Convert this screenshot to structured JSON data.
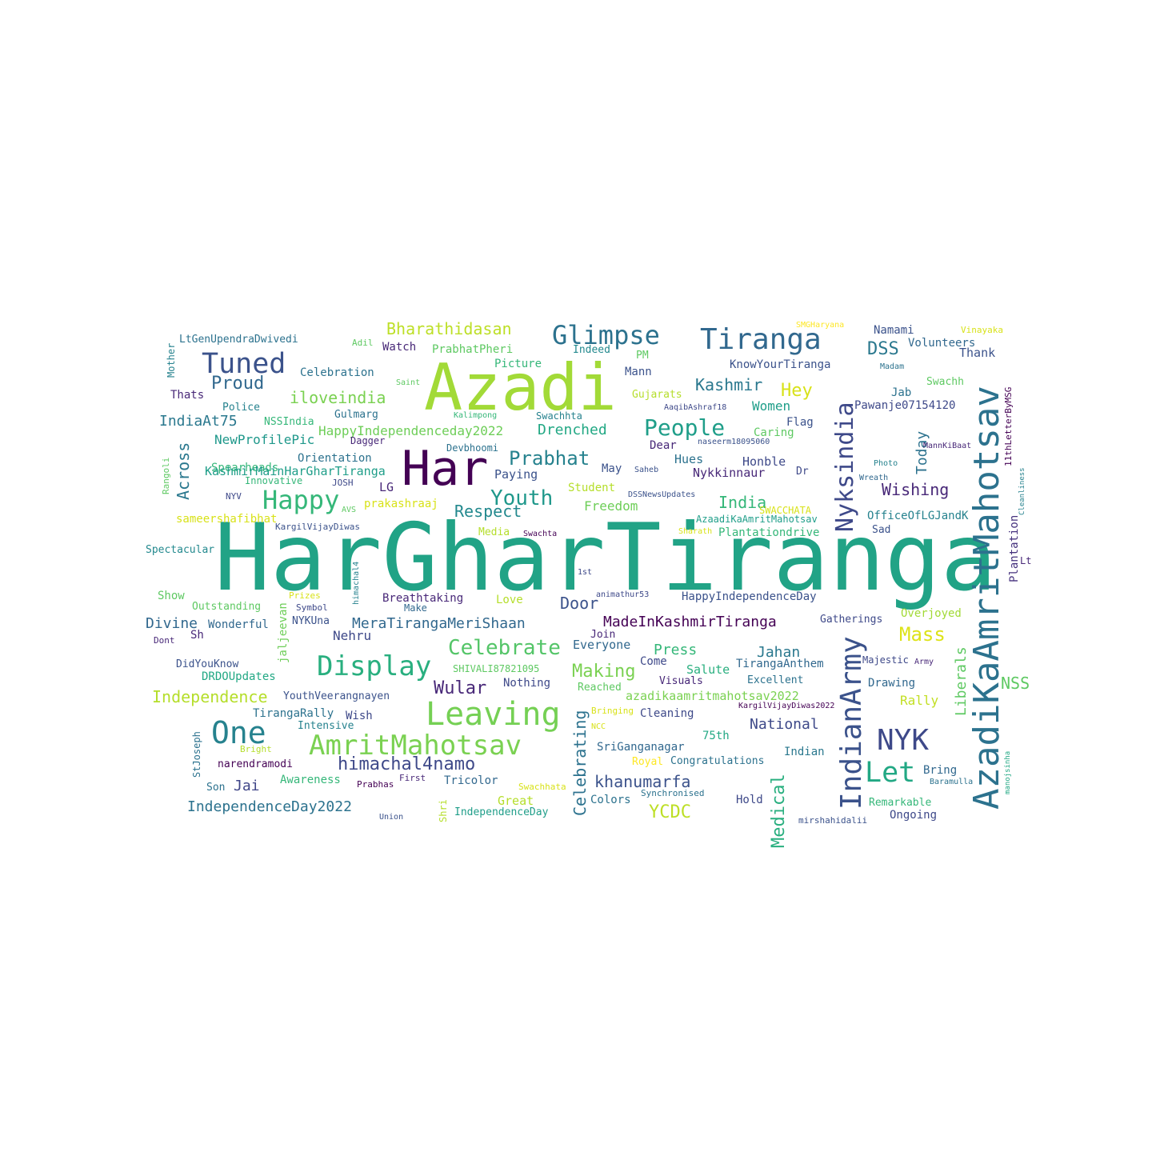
{
  "words": [
    {
      "text": "HarGharTiranga",
      "color": "#21a386"
    },
    {
      "text": "Azadi",
      "color": "#a2da37"
    },
    {
      "text": "Har",
      "color": "#440154"
    },
    {
      "text": "AzadiKaAmritMahotsav",
      "color": "#2c728e"
    },
    {
      "text": "IndianArmy",
      "color": "#3b528b"
    },
    {
      "text": "Leaving",
      "color": "#75d054"
    },
    {
      "text": "Tiranga",
      "color": "#31688e"
    },
    {
      "text": "Display",
      "color": "#29af7f"
    },
    {
      "text": "AmritMahotsav",
      "color": "#7ad151"
    },
    {
      "text": "Glimpse",
      "color": "#2c728e"
    },
    {
      "text": "Tuned",
      "color": "#3b528b"
    },
    {
      "text": "One",
      "color": "#26828e"
    },
    {
      "text": "NYK",
      "color": "#3e4989"
    },
    {
      "text": "Nyksindia",
      "color": "#3e4989"
    },
    {
      "text": "Happy",
      "color": "#35b779"
    },
    {
      "text": "Let",
      "color": "#22a884"
    },
    {
      "text": "Youth",
      "color": "#1f988b"
    },
    {
      "text": "People",
      "color": "#1f9e89"
    },
    {
      "text": "Celebrate",
      "color": "#54c568"
    },
    {
      "text": "himachal4namo",
      "color": "#3e4989"
    },
    {
      "text": "Wular",
      "color": "#482878"
    },
    {
      "text": "Prabhat",
      "color": "#26828e"
    },
    {
      "text": "Mass",
      "color": "#dde318"
    },
    {
      "text": "Proud",
      "color": "#31688e"
    },
    {
      "text": "Bharathidasan",
      "color": "#bddf26"
    },
    {
      "text": "Kashmir",
      "color": "#2a788e"
    },
    {
      "text": "iloveindia",
      "color": "#7ad151"
    },
    {
      "text": "Respect",
      "color": "#23898e"
    },
    {
      "text": "Making",
      "color": "#7ad151"
    },
    {
      "text": "Independence",
      "color": "#b5de2b"
    },
    {
      "text": "IndependenceDay2022",
      "color": "#2c728e"
    },
    {
      "text": "MeraTirangaMeriShaan",
      "color": "#31688e"
    },
    {
      "text": "MadeInKashmirTiranga",
      "color": "#440154"
    },
    {
      "text": "Drenched",
      "color": "#22a884"
    },
    {
      "text": "YCDC",
      "color": "#bddf26"
    },
    {
      "text": "khanumarfa",
      "color": "#3b528b"
    },
    {
      "text": "HappyIndependenceday2022",
      "color": "#6ece58"
    },
    {
      "text": "Celebrating",
      "color": "#2c728e"
    },
    {
      "text": "Medical",
      "color": "#29af7f"
    },
    {
      "text": "Liberals",
      "color": "#5ec962"
    },
    {
      "text": "NSS",
      "color": "#5ec962"
    },
    {
      "text": "Hey",
      "color": "#d8e219"
    },
    {
      "text": "DSS",
      "color": "#2a788e"
    },
    {
      "text": "Across",
      "color": "#2a788e"
    },
    {
      "text": "Today",
      "color": "#2c728e"
    },
    {
      "text": "Wishing",
      "color": "#482878"
    },
    {
      "text": "Divine",
      "color": "#31688e"
    },
    {
      "text": "India",
      "color": "#35b779"
    },
    {
      "text": "Jai",
      "color": "#404688"
    },
    {
      "text": "Door",
      "color": "#3b528b"
    },
    {
      "text": "Press",
      "color": "#35b779"
    },
    {
      "text": "Jahan",
      "color": "#2a788e"
    },
    {
      "text": "National",
      "color": "#3e4989"
    },
    {
      "text": "IndiaAt75",
      "color": "#2a788e"
    },
    {
      "text": "Nehru",
      "color": "#3e4989"
    },
    {
      "text": "Freedom",
      "color": "#6ece58"
    },
    {
      "text": "Student",
      "color": "#b5de2b"
    },
    {
      "text": "May",
      "color": "#3b528b"
    },
    {
      "text": "Hues",
      "color": "#2c728e"
    },
    {
      "text": "Honble",
      "color": "#3e4989"
    },
    {
      "text": "Nykkinnaur",
      "color": "#482878"
    },
    {
      "text": "Plantation",
      "color": "#46327e"
    },
    {
      "text": "Women",
      "color": "#1f9e89"
    },
    {
      "text": "Jab",
      "color": "#2c728e"
    },
    {
      "text": "Namami",
      "color": "#3b528b"
    },
    {
      "text": "Thank",
      "color": "#3b528b"
    },
    {
      "text": "Watch",
      "color": "#482878"
    },
    {
      "text": "Celebration",
      "color": "#2c728e"
    },
    {
      "text": "Volunteers",
      "color": "#31688e"
    },
    {
      "text": "KnowYourTiranga",
      "color": "#3b528b"
    },
    {
      "text": "Swachh",
      "color": "#5ec962"
    },
    {
      "text": "Pawanje07154120",
      "color": "#3e4989"
    },
    {
      "text": "Flag",
      "color": "#3b528b"
    },
    {
      "text": "Caring",
      "color": "#5ec962"
    },
    {
      "text": "Dear",
      "color": "#482878"
    },
    {
      "text": "Rally",
      "color": "#c2df23"
    },
    {
      "text": "Overjoyed",
      "color": "#a2da37"
    },
    {
      "text": "Spearheads",
      "color": "#35b779"
    },
    {
      "text": "NewProfilePic",
      "color": "#1f988b"
    },
    {
      "text": "Orientation",
      "color": "#2c728e"
    },
    {
      "text": "KashmirMainHarGharTiranga",
      "color": "#1f9e89"
    },
    {
      "text": "LG",
      "color": "#482878"
    },
    {
      "text": "Paying",
      "color": "#3b528b"
    },
    {
      "text": "prakashraaj",
      "color": "#d8e219"
    },
    {
      "text": "sameershafibhat",
      "color": "#d8e219"
    },
    {
      "text": "OfficeOfLGJandK",
      "color": "#26828e"
    },
    {
      "text": "Plantationdrive",
      "color": "#35b779"
    },
    {
      "text": "AzaadiKaAmritMahotsav",
      "color": "#1f9e89"
    },
    {
      "text": "HappyIndependenceDay",
      "color": "#3b528b"
    },
    {
      "text": "Breathtaking",
      "color": "#482878"
    },
    {
      "text": "Love",
      "color": "#b5de2b"
    },
    {
      "text": "Everyone",
      "color": "#31688e"
    },
    {
      "text": "Salute",
      "color": "#29af7f"
    },
    {
      "text": "TirangaAnthem",
      "color": "#31688e"
    },
    {
      "text": "Majestic",
      "color": "#3e4989"
    },
    {
      "text": "Drawing",
      "color": "#31688e"
    },
    {
      "text": "Excellent",
      "color": "#2c728e"
    },
    {
      "text": "azadikaamritmahotsav2022",
      "color": "#7ad151"
    },
    {
      "text": "Cleaning",
      "color": "#3e4989"
    },
    {
      "text": "Visuals",
      "color": "#482878"
    },
    {
      "text": "Come",
      "color": "#3e4989"
    },
    {
      "text": "Nothing",
      "color": "#3e4989"
    },
    {
      "text": "Reached",
      "color": "#5ec962"
    },
    {
      "text": "YouthVeerangnayen",
      "color": "#3b528b"
    },
    {
      "text": "TirangaRally",
      "color": "#2c728e"
    },
    {
      "text": "Wish",
      "color": "#3e4989"
    },
    {
      "text": "Intensive",
      "color": "#26828e"
    },
    {
      "text": "75th",
      "color": "#22a884"
    },
    {
      "text": "SriGanganagar",
      "color": "#31688e"
    },
    {
      "text": "Indian",
      "color": "#2a788e"
    },
    {
      "text": "Congratulations",
      "color": "#2c728e"
    },
    {
      "text": "Royal",
      "color": "#fde725"
    },
    {
      "text": "Bring",
      "color": "#31688e"
    },
    {
      "text": "Remarkable",
      "color": "#35b779"
    },
    {
      "text": "Ongoing",
      "color": "#3e4989"
    },
    {
      "text": "Hold",
      "color": "#3e4989"
    },
    {
      "text": "Colors",
      "color": "#2c728e"
    },
    {
      "text": "IndependenceDay",
      "color": "#1f9e89"
    },
    {
      "text": "Great",
      "color": "#b5de2b"
    },
    {
      "text": "Tricolor",
      "color": "#31688e"
    },
    {
      "text": "Awareness",
      "color": "#35b779"
    },
    {
      "text": "narendramodi",
      "color": "#440154"
    },
    {
      "text": "Son",
      "color": "#2c728e"
    },
    {
      "text": "StJoseph",
      "color": "#2c728e"
    },
    {
      "text": "DidYouKnow",
      "color": "#3b528b"
    },
    {
      "text": "DRDOUpdates",
      "color": "#22a884"
    },
    {
      "text": "Dont",
      "color": "#482878"
    },
    {
      "text": "Sh",
      "color": "#482878"
    },
    {
      "text": "Wonderful",
      "color": "#31688e"
    },
    {
      "text": "jaljeevan",
      "color": "#6ece58"
    },
    {
      "text": "NYKUna",
      "color": "#3b528b"
    },
    {
      "text": "Outstanding",
      "color": "#5ec962"
    },
    {
      "text": "Show",
      "color": "#5ec962"
    },
    {
      "text": "Spectacular",
      "color": "#23898e"
    },
    {
      "text": "Prizes",
      "color": "#d8e219"
    },
    {
      "text": "Symbol",
      "color": "#3e4989"
    },
    {
      "text": "Make",
      "color": "#31688e"
    },
    {
      "text": "himachal4",
      "color": "#26828e"
    },
    {
      "text": "Mother",
      "color": "#26828e"
    },
    {
      "text": "LtGenUpendraDwivedi",
      "color": "#2c728e"
    },
    {
      "text": "Adil",
      "color": "#5ec962"
    },
    {
      "text": "PrabhatPheri",
      "color": "#5ec962"
    },
    {
      "text": "Indeed",
      "color": "#23898e"
    },
    {
      "text": "PM",
      "color": "#5ec962"
    },
    {
      "text": "Mann",
      "color": "#3b528b"
    },
    {
      "text": "Picture",
      "color": "#35b779"
    },
    {
      "text": "Thats",
      "color": "#482878"
    },
    {
      "text": "Police",
      "color": "#26828e"
    },
    {
      "text": "NSSIndia",
      "color": "#35b779"
    },
    {
      "text": "Gulmarg",
      "color": "#2c728e"
    },
    {
      "text": "Dagger",
      "color": "#482878"
    },
    {
      "text": "Rangoli",
      "color": "#5ec962"
    },
    {
      "text": "NYV",
      "color": "#3e4989"
    },
    {
      "text": "Innovative",
      "color": "#35b779"
    },
    {
      "text": "JOSH",
      "color": "#3e4989"
    },
    {
      "text": "AVS",
      "color": "#5ec962"
    },
    {
      "text": "KargilVijayDiwas",
      "color": "#3b528b"
    },
    {
      "text": "Media",
      "color": "#b5de2b"
    },
    {
      "text": "Swachta",
      "color": "#440154"
    },
    {
      "text": "1st",
      "color": "#3e4989"
    },
    {
      "text": "animathur53",
      "color": "#3e4989"
    },
    {
      "text": "Saint",
      "color": "#5ec962"
    },
    {
      "text": "Kalimpong",
      "color": "#35b779"
    },
    {
      "text": "Swachhta",
      "color": "#26828e"
    },
    {
      "text": "Devbhoomi",
      "color": "#2c728e"
    },
    {
      "text": "Gujarats",
      "color": "#b5de2b"
    },
    {
      "text": "AaqibAshraf18",
      "color": "#3e4989"
    },
    {
      "text": "naseerm18095060",
      "color": "#3b528b"
    },
    {
      "text": "Saheb",
      "color": "#3b528b"
    },
    {
      "text": "DSSNewsUpdates",
      "color": "#3b528b"
    },
    {
      "text": "Dr",
      "color": "#3e4989"
    },
    {
      "text": "SWACCHATA",
      "color": "#d8e219"
    },
    {
      "text": "Sharath",
      "color": "#d8e219"
    },
    {
      "text": "SMGHaryana",
      "color": "#fde725"
    },
    {
      "text": "Vinayaka",
      "color": "#d8e219"
    },
    {
      "text": "Madam",
      "color": "#2c728e"
    },
    {
      "text": "11thLetterByMSG",
      "color": "#440154"
    },
    {
      "text": "MannKiBaat",
      "color": "#482878"
    },
    {
      "text": "Photo",
      "color": "#26828e"
    },
    {
      "text": "Wreath",
      "color": "#31688e"
    },
    {
      "text": "Cleanliness",
      "color": "#26828e"
    },
    {
      "text": "Sad",
      "color": "#3b528b"
    },
    {
      "text": "Lt",
      "color": "#482878"
    },
    {
      "text": "Gatherings",
      "color": "#3e4989"
    },
    {
      "text": "Army",
      "color": "#482878"
    },
    {
      "text": "KargilVijayDiwas2022",
      "color": "#440154"
    },
    {
      "text": "SHIVALI87821095",
      "color": "#5ec962"
    },
    {
      "text": "Join",
      "color": "#482878"
    },
    {
      "text": "Bringing",
      "color": "#d8e219"
    },
    {
      "text": "NCC",
      "color": "#d8e219"
    },
    {
      "text": "Synchronised",
      "color": "#2c728e"
    },
    {
      "text": "Swachhata",
      "color": "#d8e219"
    },
    {
      "text": "mirshahidalii",
      "color": "#3b528b"
    },
    {
      "text": "Baramulla",
      "color": "#2c728e"
    },
    {
      "text": "manojsinha",
      "color": "#22a884"
    },
    {
      "text": "Prabhas",
      "color": "#440154"
    },
    {
      "text": "First",
      "color": "#482878"
    },
    {
      "text": "Union",
      "color": "#3b528b"
    },
    {
      "text": "Shri",
      "color": "#b5de2b"
    },
    {
      "text": "Bright",
      "color": "#b5de2b"
    }
  ]
}
